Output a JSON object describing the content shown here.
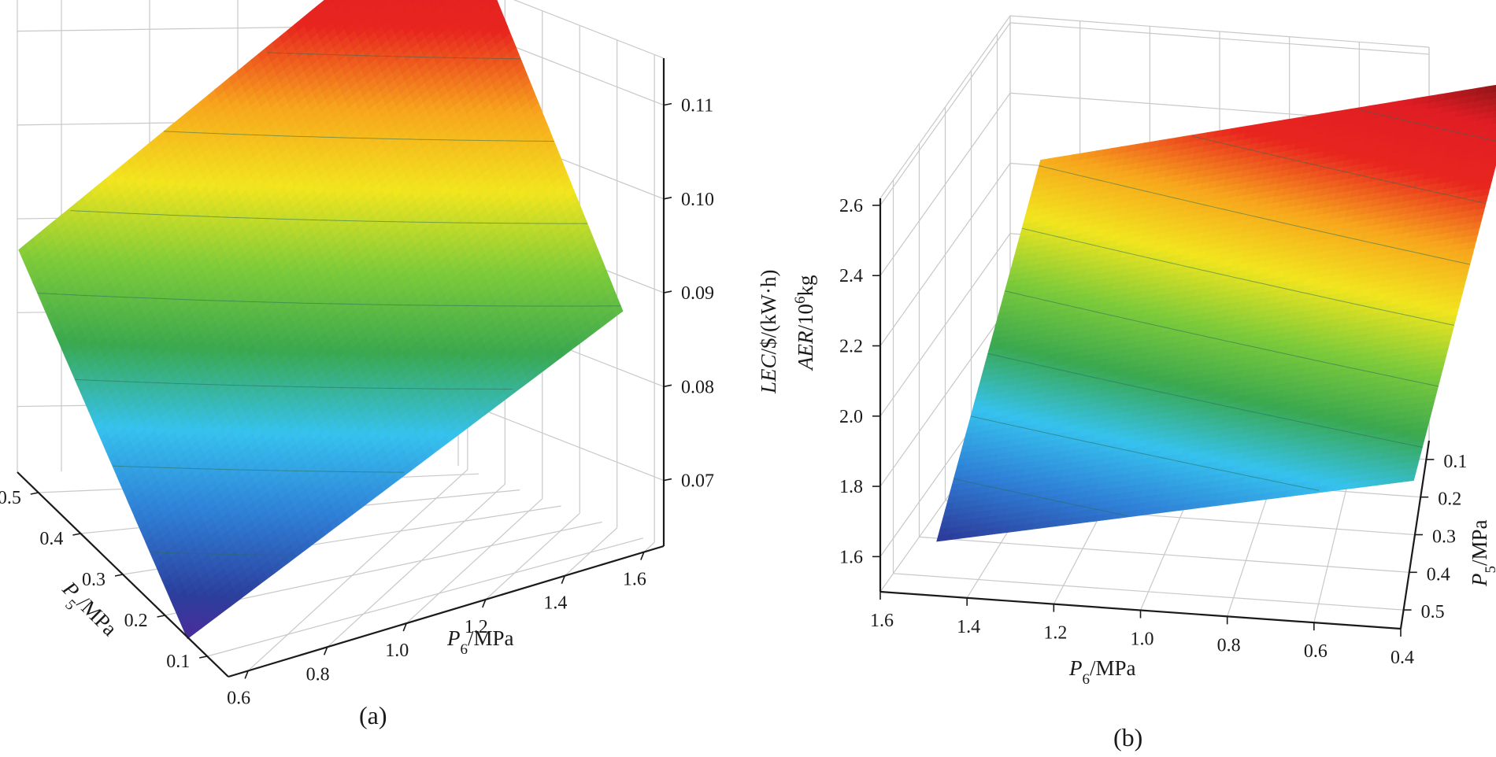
{
  "chart_data": [
    {
      "panel": "(a)",
      "type": "surface3d",
      "title": "",
      "xlabel": "P6/MPa",
      "ylabel": "P5/MPa",
      "zlabel": "LEC/$/(kW·h)",
      "x_ticks": [
        "0.6",
        "0.8",
        "1.0",
        "1.2",
        "1.4",
        "1.6"
      ],
      "y_ticks": [
        "0.1",
        "0.2",
        "0.3",
        "0.4",
        "0.5"
      ],
      "z_ticks": [
        "0.07",
        "0.08",
        "0.09",
        "0.10",
        "0.11"
      ],
      "xlim": [
        0.55,
        1.65
      ],
      "ylim": [
        0.05,
        0.55
      ],
      "zlim": [
        0.063,
        0.115
      ],
      "surface_corners": [
        {
          "P6": 0.5,
          "P5": 0.1,
          "value": 0.0655
        },
        {
          "P6": 1.6,
          "P5": 0.1,
          "value": 0.0865
        },
        {
          "P6": 0.5,
          "P5": 0.5,
          "value": 0.0895
        },
        {
          "P6": 1.6,
          "P5": 0.5,
          "value": 0.1135
        }
      ],
      "colormap": [
        "#6a1b9a",
        "#2c3e9c",
        "#2f7fd6",
        "#36c2ee",
        "#3aa84f",
        "#7ecb3a",
        "#f2e51e",
        "#f7a51d",
        "#e8261f",
        "#e01d24",
        "#5c1010"
      ]
    },
    {
      "panel": "(b)",
      "type": "surface3d",
      "title": "",
      "xlabel": "P6/MPa",
      "ylabel": "P5/MPa",
      "zlabel": "AER/10^6kg",
      "x_ticks": [
        "1.6",
        "1.4",
        "1.2",
        "1.0",
        "0.8",
        "0.6",
        "0.4"
      ],
      "y_ticks": [
        "0.1",
        "0.2",
        "0.3",
        "0.4",
        "0.5"
      ],
      "z_ticks": [
        "1.6",
        "1.8",
        "2.0",
        "2.2",
        "2.4",
        "2.6"
      ],
      "xlim": [
        0.4,
        1.6
      ],
      "ylim": [
        0.05,
        0.55
      ],
      "zlim": [
        1.5,
        2.62
      ],
      "surface_corners": [
        {
          "P6": 1.5,
          "P5": 0.5,
          "value": 1.6
        },
        {
          "P6": 0.4,
          "P5": 0.5,
          "value": 1.87
        },
        {
          "P6": 1.5,
          "P5": 0.1,
          "value": 2.27
        },
        {
          "P6": 0.4,
          "P5": 0.1,
          "value": 2.59
        }
      ],
      "colormap": [
        "#6a1b9a",
        "#2c3e9c",
        "#2f7fd6",
        "#36c2ee",
        "#3aa84f",
        "#7ecb3a",
        "#f2e51e",
        "#f7a51d",
        "#e8261f",
        "#e01d24",
        "#5c1010"
      ]
    }
  ],
  "labels": {
    "a_z_italic": "LEC",
    "a_z_rest": "/$/(kW·h)",
    "a_x_main": "P",
    "a_x_sub": "6",
    "a_x_unit": "/MPa",
    "a_y_main": "P",
    "a_y_sub": "5",
    "a_y_unit": "/MPa",
    "a_panel": "(a)",
    "b_z_italic": "AER",
    "b_z_mid": "/10",
    "b_z_sup": "6",
    "b_z_unit": "kg",
    "b_x_main": "P",
    "b_x_sub": "6",
    "b_x_unit": "/MPa",
    "b_y_main": "P",
    "b_y_sub": "5",
    "b_y_unit": "/MPa",
    "b_panel": "(b)"
  }
}
